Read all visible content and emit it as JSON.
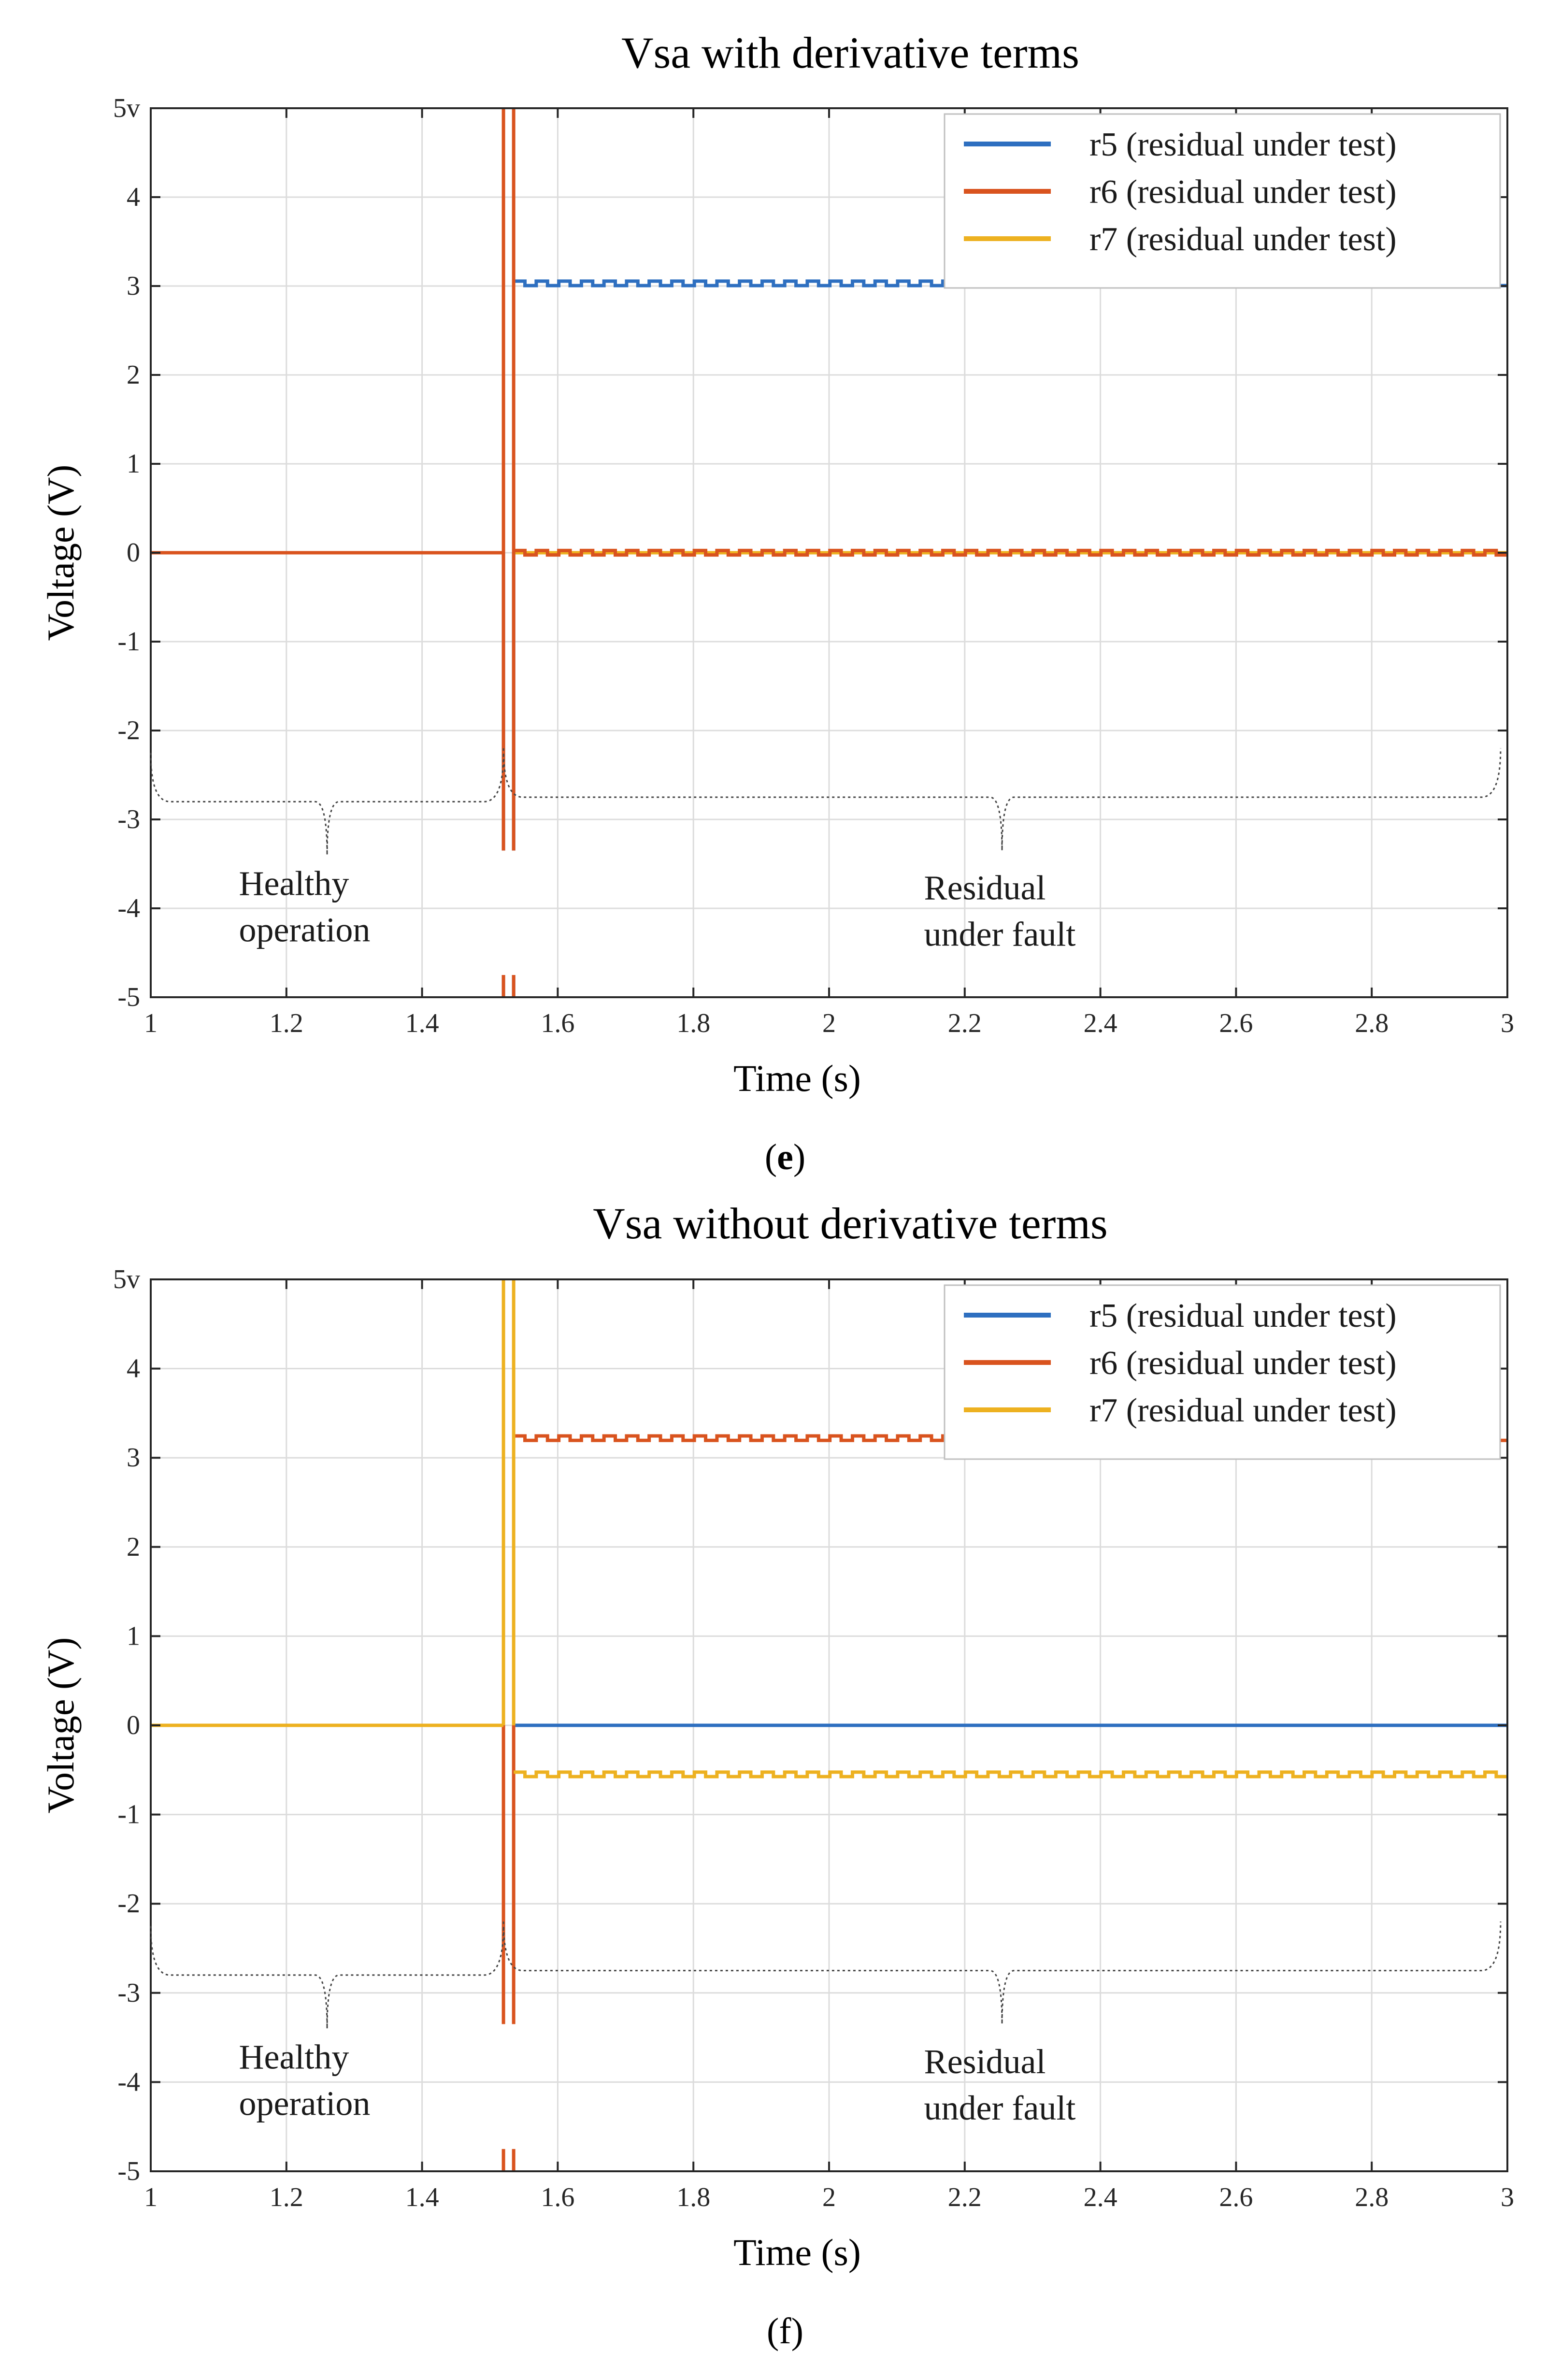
{
  "colors": {
    "r5": "#2E6FC0",
    "r6": "#D9531E",
    "r7": "#EDB120",
    "grid": "#dcdcdc",
    "axis": "#262626",
    "bracket": "#444444"
  },
  "chart_data": [
    {
      "panel_label": "e",
      "type": "line",
      "title": "Vsa with derivative terms",
      "xlabel": "Time (s)",
      "ylabel": "Voltage (V)",
      "xlim": [
        1,
        3
      ],
      "ylim": [
        -5,
        5
      ],
      "grid": true,
      "legend_position": "top-right",
      "xticks": [
        1,
        1.2,
        1.4,
        1.6,
        1.8,
        2,
        2.2,
        2.4,
        2.6,
        2.8,
        3
      ],
      "xtick_labels": [
        "1",
        "1.2",
        "1.4",
        "1.6",
        "1.8",
        "2",
        "2.2",
        "2.4",
        "2.6",
        "2.8",
        "3"
      ],
      "yticks": [
        5,
        4,
        3,
        2,
        1,
        0,
        -1,
        -2,
        -3,
        -4,
        -5
      ],
      "ytick_labels": [
        "5v",
        "4",
        "3",
        "2",
        "1",
        "0",
        "-1",
        "-2",
        "-3",
        "-4",
        "-5"
      ],
      "fault_transition": [
        1.52,
        1.535
      ],
      "series": [
        {
          "name": "r5 (residual under test)",
          "key": "r5",
          "pre_fault": 0,
          "post_fault": 3.03,
          "ripple": 0.05,
          "spike_top": 0,
          "spike_bottom": -5
        },
        {
          "name": "r6 (residual under test)",
          "key": "r6",
          "pre_fault": 0,
          "post_fault": 0,
          "ripple": 0.05,
          "spike_top": 5,
          "spike_bottom": -5
        },
        {
          "name": "r7 (residual under test)",
          "key": "r7",
          "pre_fault": 0,
          "post_fault": 0,
          "ripple": 0,
          "spike_top": 0,
          "spike_bottom": 0
        }
      ],
      "annotations": [
        {
          "text": [
            "Healthy",
            "operation"
          ],
          "x": 1.13,
          "y": -3.85
        },
        {
          "text": [
            "Residual",
            "under fault"
          ],
          "x": 2.14,
          "y": -3.9
        }
      ],
      "brackets": [
        {
          "x_start": 1.0,
          "x_end": 1.52,
          "y": -2.8,
          "tip_y": -3.4
        },
        {
          "x_start": 1.52,
          "x_end": 2.99,
          "y": -2.75,
          "tip_y": -3.35
        }
      ]
    },
    {
      "panel_label": "f",
      "type": "line",
      "title": "Vsa without derivative terms",
      "xlabel": "Time (s)",
      "ylabel": "Voltage (V)",
      "xlim": [
        1,
        3
      ],
      "ylim": [
        -5,
        5
      ],
      "grid": true,
      "legend_position": "top-right",
      "xticks": [
        1,
        1.2,
        1.4,
        1.6,
        1.8,
        2,
        2.2,
        2.4,
        2.6,
        2.8,
        3
      ],
      "xtick_labels": [
        "1",
        "1.2",
        "1.4",
        "1.6",
        "1.8",
        "2",
        "2.2",
        "2.4",
        "2.6",
        "2.8",
        "3"
      ],
      "yticks": [
        5,
        4,
        3,
        2,
        1,
        0,
        -1,
        -2,
        -3,
        -4,
        -5
      ],
      "ytick_labels": [
        "5v",
        "4",
        "3",
        "2",
        "1",
        "0",
        "-1",
        "-2",
        "-3",
        "-4",
        "-5"
      ],
      "fault_transition": [
        1.52,
        1.535
      ],
      "series": [
        {
          "name": "r5 (residual under test)",
          "key": "r5",
          "pre_fault": 0,
          "post_fault": 0,
          "ripple": 0,
          "spike_top": 0,
          "spike_bottom": 0
        },
        {
          "name": "r6 (residual under test)",
          "key": "r6",
          "pre_fault": 0,
          "post_fault": 3.22,
          "ripple": 0.05,
          "spike_top": 0,
          "spike_bottom": -5
        },
        {
          "name": "r7 (residual under test)",
          "key": "r7",
          "pre_fault": 0,
          "post_fault": -0.55,
          "ripple": 0.05,
          "spike_top": 5,
          "spike_bottom": 0
        }
      ],
      "annotations": [
        {
          "text": [
            "Healthy",
            "operation"
          ],
          "x": 1.13,
          "y": -3.85
        },
        {
          "text": [
            "Residual",
            "under fault"
          ],
          "x": 2.14,
          "y": -3.9
        }
      ],
      "brackets": [
        {
          "x_start": 1.0,
          "x_end": 1.52,
          "y": -2.8,
          "tip_y": -3.4
        },
        {
          "x_start": 1.52,
          "x_end": 2.99,
          "y": -2.75,
          "tip_y": -3.35
        }
      ]
    }
  ]
}
